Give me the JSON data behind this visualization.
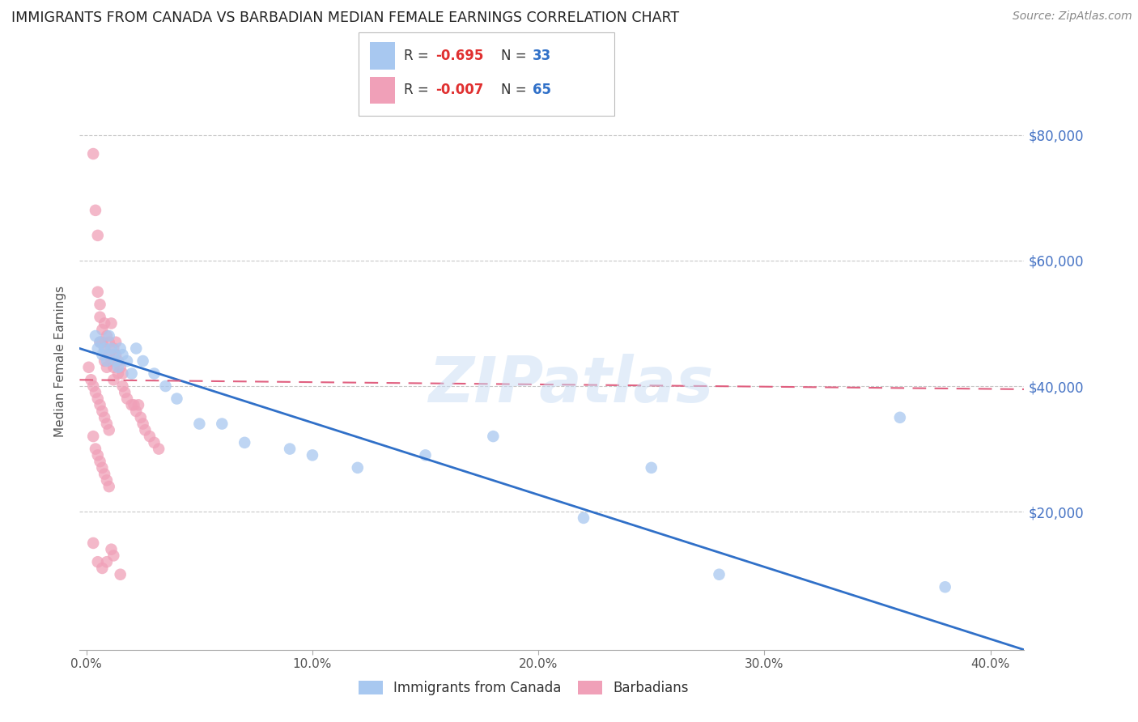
{
  "title": "IMMIGRANTS FROM CANADA VS BARBADIAN MEDIAN FEMALE EARNINGS CORRELATION CHART",
  "source": "Source: ZipAtlas.com",
  "xlabel_ticks": [
    "0.0%",
    "10.0%",
    "20.0%",
    "30.0%",
    "40.0%"
  ],
  "xlabel_values": [
    0.0,
    0.1,
    0.2,
    0.3,
    0.4
  ],
  "ylabel_ticks": [
    "$20,000",
    "$40,000",
    "$60,000",
    "$80,000"
  ],
  "ylabel_values": [
    20000,
    40000,
    60000,
    80000
  ],
  "ylabel_label": "Median Female Earnings",
  "xmin": -0.003,
  "xmax": 0.415,
  "ymin": -2000,
  "ymax": 90000,
  "blue_label": "Immigrants from Canada",
  "pink_label": "Barbadians",
  "blue_R": -0.695,
  "blue_N": 33,
  "pink_R": -0.007,
  "pink_N": 65,
  "blue_color": "#a8c8f0",
  "pink_color": "#f0a0b8",
  "blue_line_color": "#3070c8",
  "pink_line_color": "#e06080",
  "watermark": "ZIPatlas",
  "blue_x": [
    0.004,
    0.005,
    0.006,
    0.007,
    0.008,
    0.009,
    0.01,
    0.011,
    0.012,
    0.013,
    0.014,
    0.015,
    0.016,
    0.018,
    0.02,
    0.022,
    0.025,
    0.03,
    0.035,
    0.04,
    0.05,
    0.06,
    0.07,
    0.09,
    0.1,
    0.12,
    0.15,
    0.18,
    0.22,
    0.25,
    0.28,
    0.36,
    0.38
  ],
  "blue_y": [
    48000,
    46000,
    47000,
    45000,
    46000,
    44000,
    48000,
    46000,
    45000,
    44000,
    43000,
    46000,
    45000,
    44000,
    42000,
    46000,
    44000,
    42000,
    40000,
    38000,
    34000,
    34000,
    31000,
    30000,
    29000,
    27000,
    29000,
    32000,
    19000,
    27000,
    10000,
    35000,
    8000
  ],
  "pink_x": [
    0.003,
    0.004,
    0.005,
    0.005,
    0.006,
    0.006,
    0.006,
    0.007,
    0.007,
    0.008,
    0.008,
    0.008,
    0.009,
    0.009,
    0.01,
    0.01,
    0.011,
    0.011,
    0.012,
    0.012,
    0.012,
    0.013,
    0.013,
    0.014,
    0.014,
    0.015,
    0.016,
    0.016,
    0.017,
    0.018,
    0.02,
    0.021,
    0.022,
    0.023,
    0.024,
    0.025,
    0.026,
    0.028,
    0.03,
    0.032,
    0.001,
    0.002,
    0.003,
    0.004,
    0.005,
    0.006,
    0.007,
    0.008,
    0.009,
    0.01,
    0.003,
    0.004,
    0.005,
    0.006,
    0.007,
    0.008,
    0.009,
    0.01,
    0.012,
    0.015,
    0.003,
    0.005,
    0.007,
    0.009,
    0.011
  ],
  "pink_y": [
    77000,
    68000,
    64000,
    55000,
    51000,
    47000,
    53000,
    49000,
    47000,
    46000,
    44000,
    50000,
    48000,
    43000,
    47000,
    45000,
    50000,
    44000,
    46000,
    43000,
    41000,
    47000,
    45000,
    44000,
    42000,
    43000,
    42000,
    40000,
    39000,
    38000,
    37000,
    37000,
    36000,
    37000,
    35000,
    34000,
    33000,
    32000,
    31000,
    30000,
    43000,
    41000,
    40000,
    39000,
    38000,
    37000,
    36000,
    35000,
    34000,
    33000,
    32000,
    30000,
    29000,
    28000,
    27000,
    26000,
    25000,
    24000,
    13000,
    10000,
    15000,
    12000,
    11000,
    12000,
    14000
  ]
}
